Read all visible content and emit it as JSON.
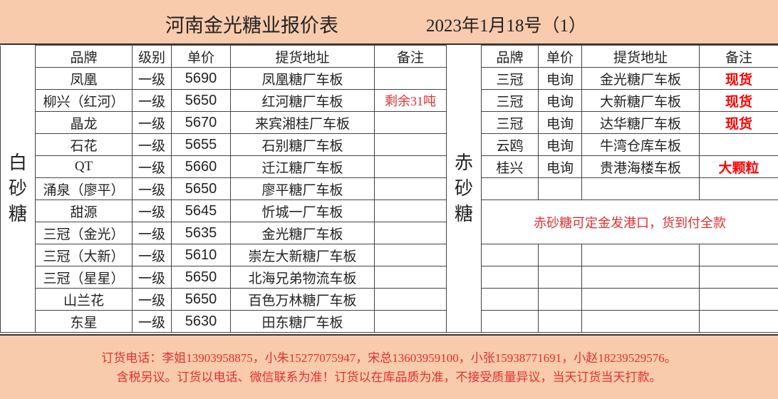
{
  "header": {
    "title": "河南金光糖业报价表",
    "date": "2023年1月18号（1）"
  },
  "white_sugar": {
    "label": "白砂糖",
    "columns": [
      "品牌",
      "级别",
      "单价",
      "提货地址",
      "备注"
    ],
    "rows": [
      [
        "凤凰",
        "一级",
        "5690",
        "凤凰糖厂车板",
        ""
      ],
      [
        "柳兴（红河）",
        "一级",
        "5650",
        "红河糖厂车板",
        "剩余31吨"
      ],
      [
        "晶龙",
        "一级",
        "5670",
        "来宾湘桂厂车板",
        ""
      ],
      [
        "石花",
        "一级",
        "5655",
        "石别糖厂车板",
        ""
      ],
      [
        "QT",
        "一级",
        "5660",
        "迁江糖厂车板",
        ""
      ],
      [
        "涌泉（廖平）",
        "一级",
        "5650",
        "廖平糖厂车板",
        ""
      ],
      [
        "甜源",
        "一级",
        "5645",
        "忻城一厂车板",
        ""
      ],
      [
        "三冠（金光）",
        "一级",
        "5635",
        "金光糖厂车板",
        ""
      ],
      [
        "三冠（大新）",
        "一级",
        "5610",
        "崇左大新糖厂车板",
        ""
      ],
      [
        "三冠（星星）",
        "一级",
        "5650",
        "北海兄弟物流车板",
        ""
      ],
      [
        "山兰花",
        "一级",
        "5650",
        "百色万林糖厂车板",
        ""
      ],
      [
        "东星",
        "一级",
        "5630",
        "田东糖厂车板",
        ""
      ]
    ]
  },
  "brown_sugar": {
    "label": "赤砂糖",
    "columns": [
      "品牌",
      "单价",
      "提货地址",
      "备注"
    ],
    "rows": [
      [
        "三冠",
        "电询",
        "金光糖厂车板",
        "现货"
      ],
      [
        "三冠",
        "电询",
        "大新糖厂车板",
        "现货"
      ],
      [
        "三冠",
        "电询",
        "达华糖厂车板",
        "现货"
      ],
      [
        "云鸥",
        "电询",
        "牛湾仓库车板",
        ""
      ],
      [
        "桂兴",
        "电询",
        "贵港海楼车板",
        "大颗粒"
      ]
    ],
    "note": "赤砂糖可定金发港口，货到付全款"
  },
  "footer": {
    "line1": "订货电话：李姐13903958875，小朱15277075947，宋总13603959100，小张15938771691，小赵18239529576。",
    "line2": "含税另议。订货以电话、微信联系为准！订货以在库品质为准，不接受质量异议，当天订货当天打款。"
  },
  "colors": {
    "header_bg": "#f8cbad",
    "remark_red": "#e03030",
    "stock_red": "#ff0000"
  }
}
